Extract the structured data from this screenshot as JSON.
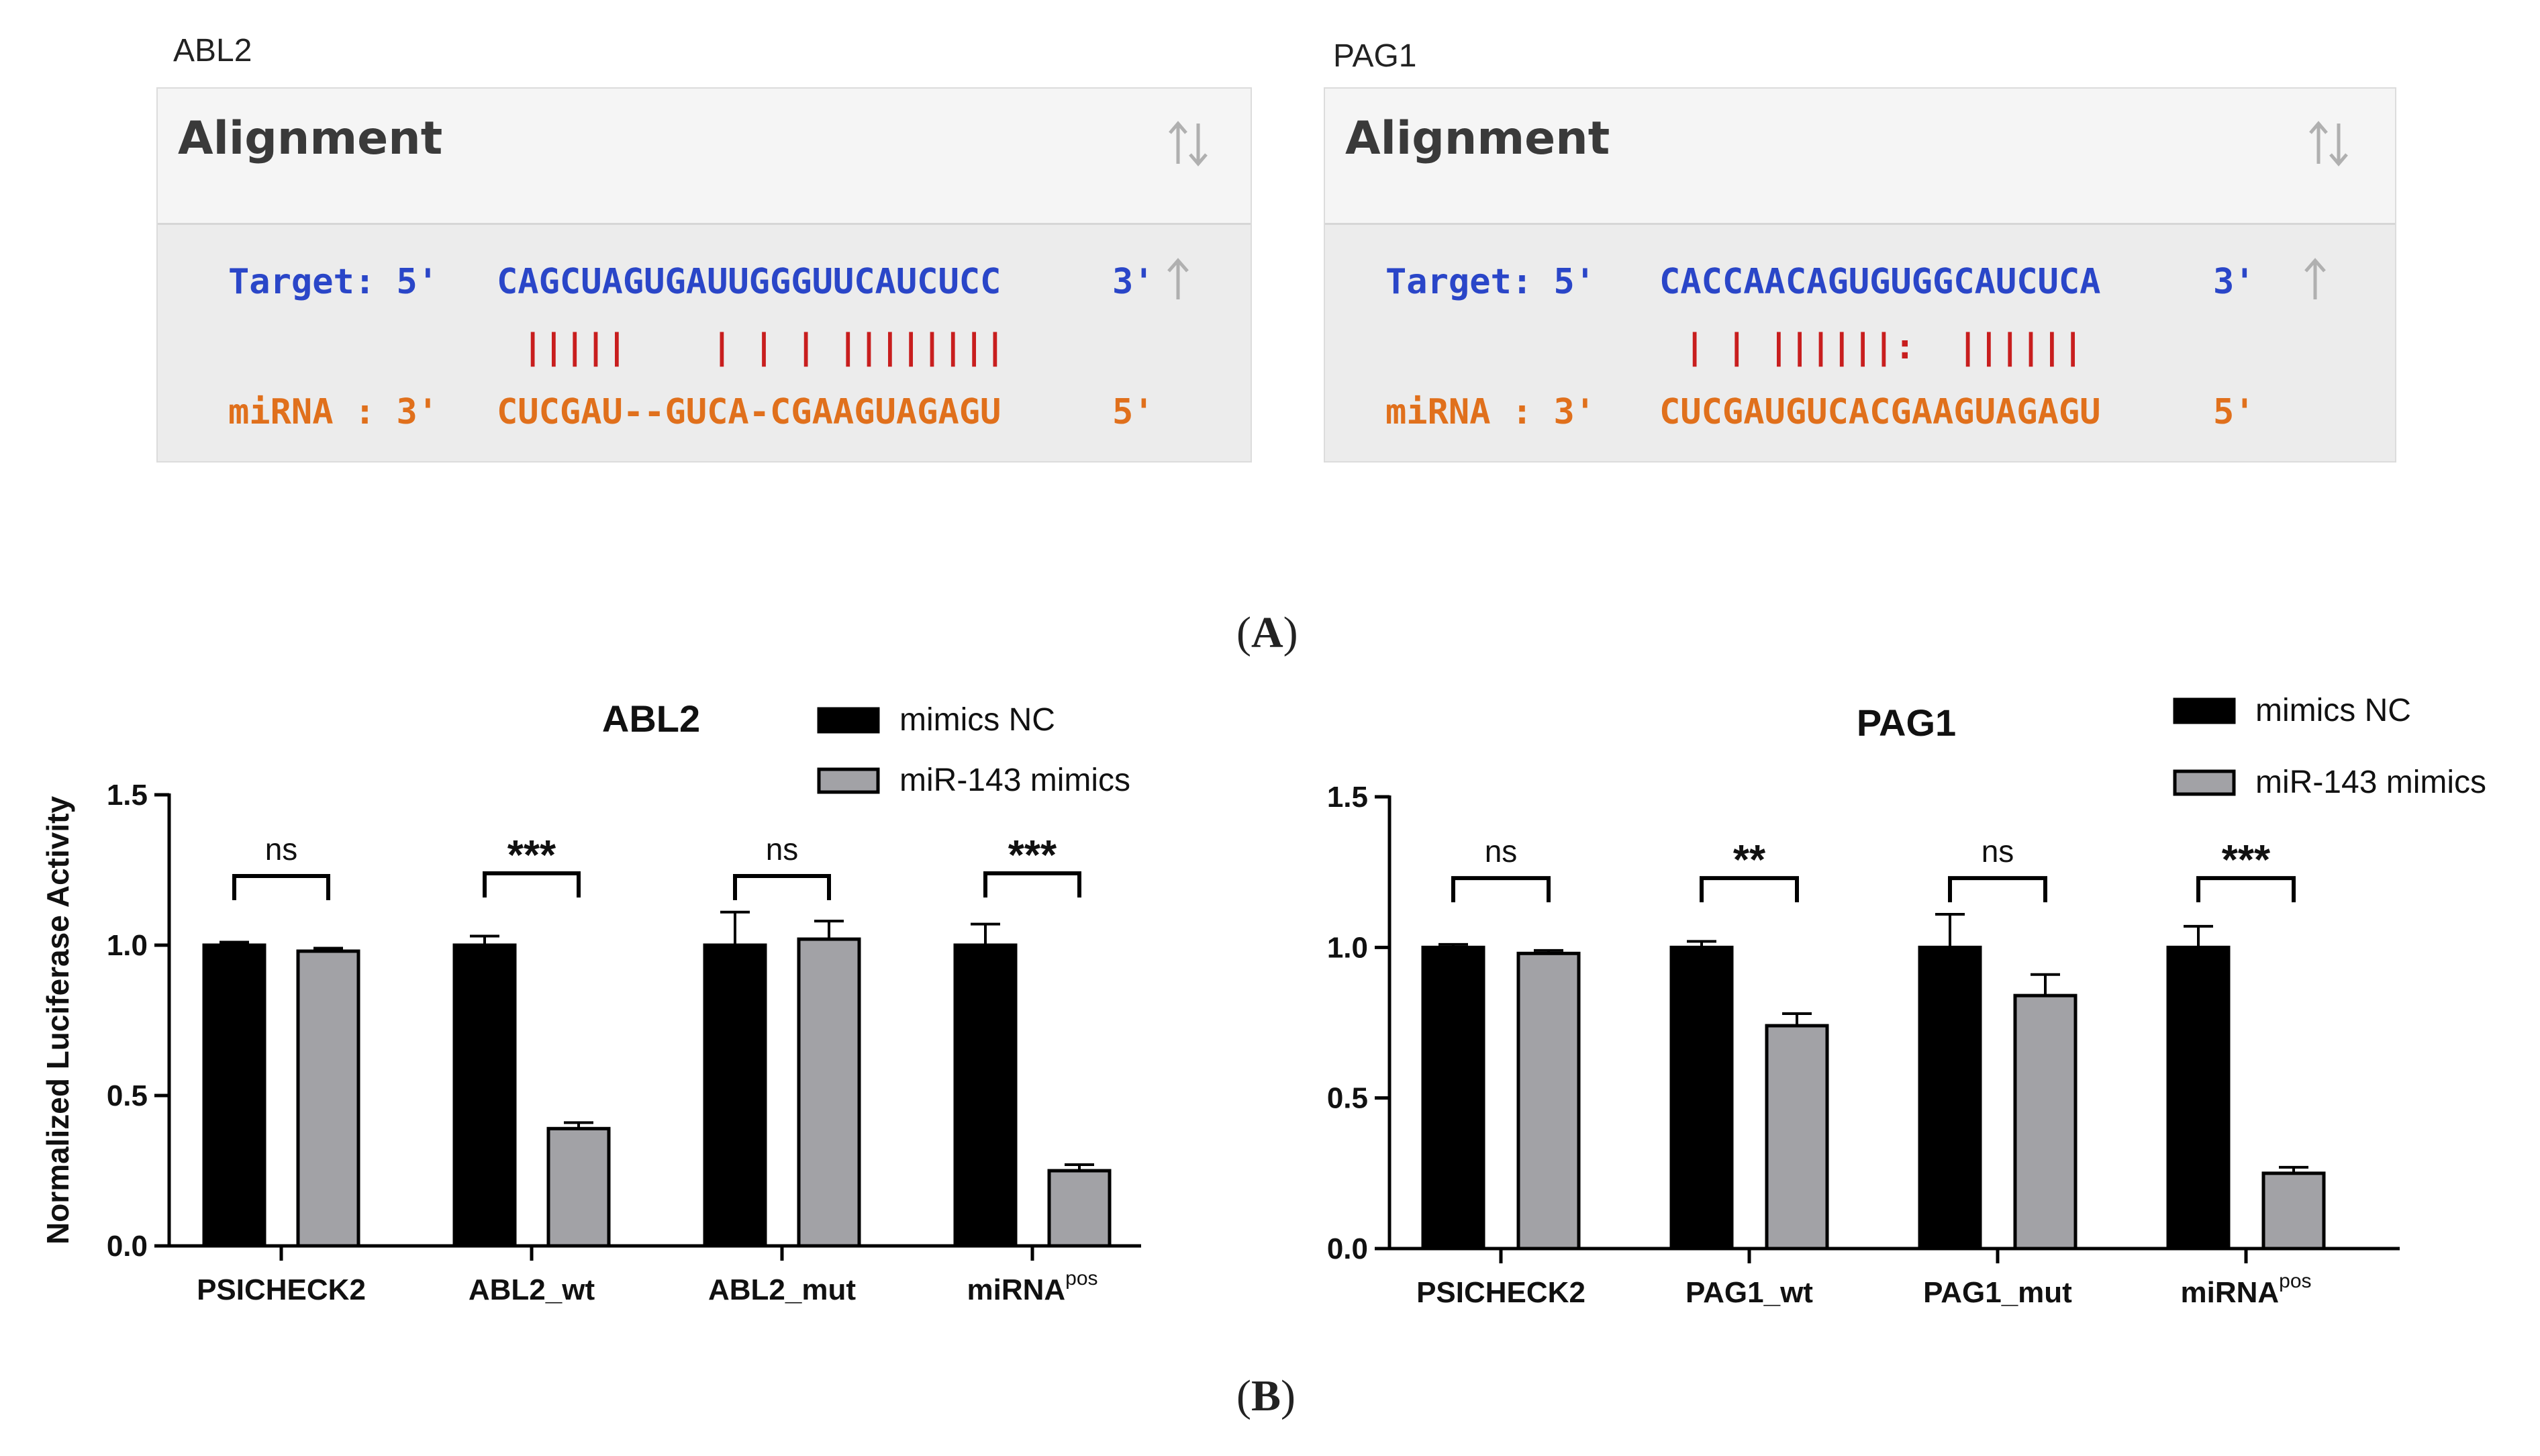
{
  "alignments": [
    {
      "gene_label": "ABL2",
      "header_title": "Alignment",
      "target_prefix": "Target: 5'",
      "target_seq": "CAGCUAGUGAUUGGGUUCAUCUCC",
      "target_suffix": "3'",
      "pairing": "|||||    | | | ||||||||",
      "mirna_prefix": "miRNA : 3'",
      "mirna_seq": "CUCGAU--GUCA-CGAAGUAGAGU",
      "mirna_suffix": "5'"
    },
    {
      "gene_label": "PAG1",
      "header_title": "Alignment",
      "target_prefix": "Target: 5'",
      "target_seq": "CACCAACAGUGUGGCAUCUCA",
      "target_suffix": "3'",
      "pairing": "| | ||||||:  ||||||",
      "mirna_prefix": "miRNA : 3'",
      "mirna_seq": "CUCGAUGUCACGAAGUAGAGU",
      "mirna_suffix": "5'"
    }
  ],
  "panel_labels": {
    "a_open": "(",
    "a": "A",
    "a_close": ")",
    "b_open": "(",
    "b": "B",
    "b_close": ")"
  },
  "colors": {
    "nc": "#000000",
    "mimic": "#a2a2a6",
    "target": "#2a46c8",
    "mirna": "#e0701c",
    "pair": "#c81e1e"
  },
  "chart_data": [
    {
      "type": "bar",
      "title": "ABL2",
      "ylabel": "Normalized Luciferase Activity",
      "xlabel": "",
      "ylim": [
        0,
        1.5
      ],
      "yticks": [
        "0.0",
        "0.5",
        "1.0",
        "1.5"
      ],
      "ytick_values": [
        0,
        0.5,
        1.0,
        1.5
      ],
      "categories": [
        "PSICHECK2",
        "ABL2_wt",
        "ABL2_mut",
        "miRNA"
      ],
      "category_superscripts": [
        "",
        "",
        "",
        "pos"
      ],
      "legend_position": "top-right",
      "series": [
        {
          "name": "mimics NC",
          "values": [
            1.0,
            1.0,
            1.0,
            1.0
          ],
          "errors": [
            0.01,
            0.03,
            0.11,
            0.07
          ]
        },
        {
          "name": "miR-143 mimics",
          "values": [
            0.98,
            0.39,
            1.02,
            0.25
          ],
          "errors": [
            0.01,
            0.02,
            0.06,
            0.02
          ]
        }
      ],
      "significance": [
        "ns",
        "***",
        "ns",
        "***"
      ]
    },
    {
      "type": "bar",
      "title": "PAG1",
      "ylabel": "Normalized Luciferase Activity",
      "xlabel": "",
      "ylim": [
        0,
        1.5
      ],
      "yticks": [
        "0.0",
        "0.5",
        "1.0",
        "1.5"
      ],
      "ytick_values": [
        0,
        0.5,
        1.0,
        1.5
      ],
      "categories": [
        "PSICHECK2",
        "PAG1_wt",
        "PAG1_mut",
        "miRNA"
      ],
      "category_superscripts": [
        "",
        "",
        "",
        "pos"
      ],
      "legend_position": "top-right",
      "series": [
        {
          "name": "mimics NC",
          "values": [
            1.0,
            1.0,
            1.0,
            1.0
          ],
          "errors": [
            0.01,
            0.02,
            0.11,
            0.07
          ]
        },
        {
          "name": "miR-143 mimics",
          "values": [
            0.98,
            0.74,
            0.84,
            0.25
          ],
          "errors": [
            0.01,
            0.04,
            0.07,
            0.02
          ]
        }
      ],
      "significance": [
        "ns",
        "**",
        "ns",
        "***"
      ]
    }
  ]
}
